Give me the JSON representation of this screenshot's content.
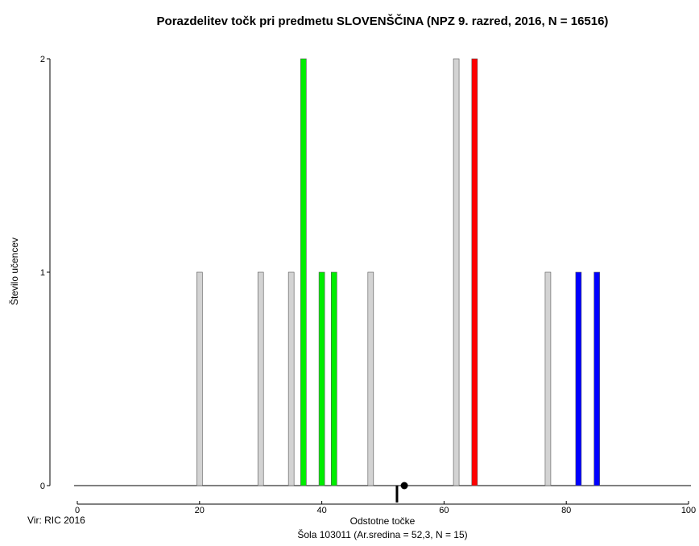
{
  "chart_data": {
    "type": "bar",
    "title": "Porazdelitev točk pri predmetu SLOVENŠČINA (NPZ 9. razred, 2016, N = 16516)",
    "xlabel": "Odstotne točke",
    "ylabel": "Število učencev",
    "subtitle": "Šola 103011 (Ar.sredina = 52,3, N = 15)",
    "source": "Vir: RIC 2016",
    "xlim": [
      0,
      100
    ],
    "ylim": [
      0,
      2
    ],
    "x_ticks": [
      0,
      20,
      40,
      60,
      80,
      100
    ],
    "y_ticks": [
      0,
      1,
      2
    ],
    "grid": false,
    "bars": [
      {
        "x": 20,
        "value": 1,
        "color": "#d3d3d3"
      },
      {
        "x": 30,
        "value": 1,
        "color": "#d3d3d3"
      },
      {
        "x": 35,
        "value": 1,
        "color": "#d3d3d3"
      },
      {
        "x": 37,
        "value": 2,
        "color": "#00ee00"
      },
      {
        "x": 40,
        "value": 1,
        "color": "#00ee00"
      },
      {
        "x": 42,
        "value": 1,
        "color": "#00ee00"
      },
      {
        "x": 48,
        "value": 1,
        "color": "#d3d3d3"
      },
      {
        "x": 62,
        "value": 2,
        "color": "#d3d3d3"
      },
      {
        "x": 65,
        "value": 2,
        "color": "#ff0000"
      },
      {
        "x": 77,
        "value": 1,
        "color": "#d3d3d3"
      },
      {
        "x": 82,
        "value": 1,
        "color": "#0000ff"
      },
      {
        "x": 85,
        "value": 1,
        "color": "#0000ff"
      }
    ],
    "markers": {
      "mean_line_x": 52.3,
      "dot_x": 53.5
    }
  }
}
